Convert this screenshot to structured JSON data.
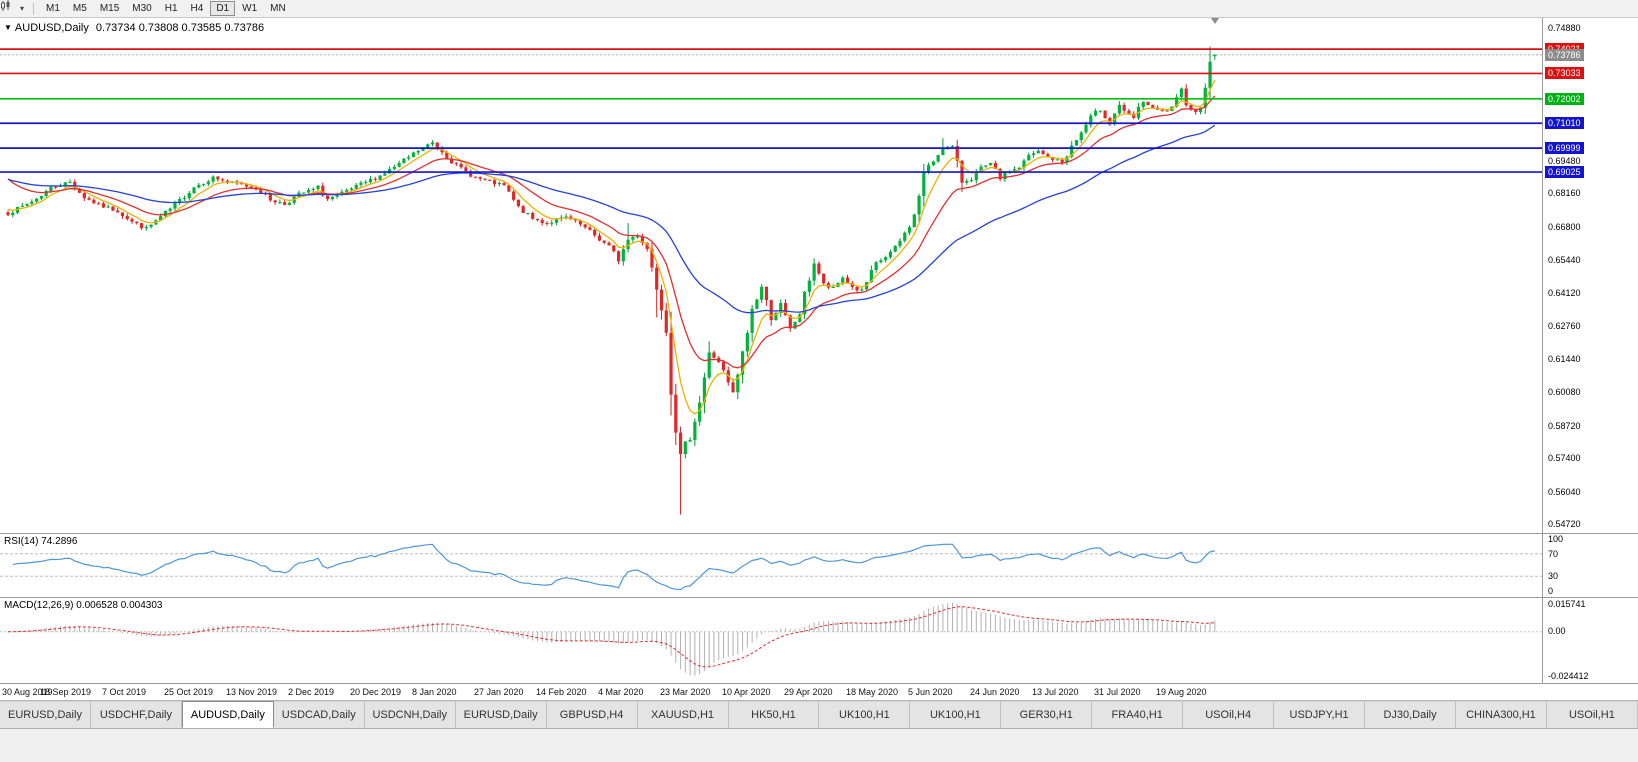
{
  "toolbar": {
    "chart_type_icon": "candlestick-chart-icon",
    "dropdown_icon": "▾",
    "timeframes": [
      "M1",
      "M5",
      "M15",
      "M30",
      "H1",
      "H4",
      "D1",
      "W1",
      "MN"
    ],
    "active_timeframe": "D1"
  },
  "main_chart": {
    "collapse_icon": "▼",
    "title": "AUDUSD,Daily",
    "ohlc": "0.73734 0.73808 0.73585 0.73786"
  },
  "rsi_panel": {
    "label": "RSI(14) 74.2896"
  },
  "macd_panel": {
    "label": "MACD(12,26,9) 0.006528 0.004303"
  },
  "tabs": {
    "active_index": 2,
    "items": [
      "EURUSD,Daily",
      "USDCHF,Daily",
      "AUDUSD,Daily",
      "USDCAD,Daily",
      "USDCNH,Daily",
      "EURUSD,Daily",
      "GBPUSD,H4",
      "XAUUSD,H1",
      "HK50,H1",
      "UK100,H1",
      "UK100,H1",
      "GER30,H1",
      "FRA40,H1",
      "USOil,H4",
      "USDJPY,H1",
      "DJ30,Daily",
      "CHINA300,H1",
      "USOil,H1"
    ]
  },
  "chart_data": {
    "type": "candlestick",
    "symbol": "AUDUSD",
    "timeframe": "Daily",
    "current": {
      "open": 0.73734,
      "high": 0.73808,
      "low": 0.73585,
      "close": 0.73786
    },
    "y_axis": {
      "min": 0.5472,
      "max": 0.7488,
      "labels": [
        "0.74880",
        "0.69480",
        "0.68160",
        "0.66800",
        "0.65440",
        "0.64120",
        "0.62760",
        "0.61440",
        "0.60080",
        "0.58720",
        "0.57400",
        "0.56040",
        "0.54720"
      ]
    },
    "x_labels": [
      "30 Aug 2019",
      "18 Sep 2019",
      "7 Oct 2019",
      "25 Oct 2019",
      "13 Nov 2019",
      "2 Dec 2019",
      "20 Dec 2019",
      "8 Jan 2020",
      "27 Jan 2020",
      "14 Feb 2020",
      "4 Mar 2020",
      "23 Mar 2020",
      "10 Apr 2020",
      "29 Apr 2020",
      "18 May 2020",
      "5 Jun 2020",
      "24 Jun 2020",
      "13 Jul 2020",
      "31 Jul 2020",
      "19 Aug 2020"
    ],
    "label_every": 13,
    "hlines": [
      {
        "price": 0.74021,
        "color": "#dd1111",
        "label": "0.74021"
      },
      {
        "price": 0.73033,
        "color": "#dd1111",
        "label": "0.73033"
      },
      {
        "price": 0.72002,
        "color": "#00c214",
        "label": "0.72002"
      },
      {
        "price": 0.7101,
        "color": "#1414cc",
        "label": "0.71010"
      },
      {
        "price": 0.69999,
        "color": "#1414cc",
        "label": "0.69999"
      },
      {
        "price": 0.69025,
        "color": "#1414cc",
        "label": "0.69025"
      }
    ],
    "badges": [
      {
        "price": 0.74021,
        "bg": "#dd1111",
        "label": "0.74021"
      },
      {
        "price": 0.73786,
        "bg": "#8c8c8c",
        "label": "0.73786"
      },
      {
        "price": 0.73033,
        "bg": "#dd1111",
        "label": "0.73033"
      },
      {
        "price": 0.72002,
        "bg": "#00b214",
        "label": "0.72002"
      },
      {
        "price": 0.7101,
        "bg": "#1414cc",
        "label": "0.71010"
      },
      {
        "price": 0.69999,
        "bg": "#1414cc",
        "label": "0.69999"
      },
      {
        "price": 0.69025,
        "bg": "#1414cc",
        "label": "0.69025"
      }
    ],
    "colors": {
      "up": "#00b33c",
      "down": "#e02828",
      "wick_up": "#009933",
      "wick_down": "#cc2020",
      "bid_line": "#b0b0b0",
      "rsi": "#4f97d7",
      "rsi_level": "#bdbdbd",
      "macd_hist": "#b0b0b0",
      "macd_signal": "#e03030",
      "macd_zero": "#c4c4c4"
    },
    "candles": {
      "count": 254,
      "seed": 7,
      "noise": 0.0013,
      "anchors": [
        [
          0,
          0.6735
        ],
        [
          3,
          0.6762
        ],
        [
          6,
          0.6795
        ],
        [
          9,
          0.684
        ],
        [
          13,
          0.6862
        ],
        [
          16,
          0.68
        ],
        [
          19,
          0.6768
        ],
        [
          23,
          0.6745
        ],
        [
          26,
          0.67
        ],
        [
          29,
          0.6672
        ],
        [
          32,
          0.672
        ],
        [
          35,
          0.6768
        ],
        [
          39,
          0.6842
        ],
        [
          43,
          0.688
        ],
        [
          47,
          0.6858
        ],
        [
          52,
          0.6838
        ],
        [
          55,
          0.679
        ],
        [
          58,
          0.6772
        ],
        [
          61,
          0.6812
        ],
        [
          65,
          0.6838
        ],
        [
          67,
          0.6792
        ],
        [
          70,
          0.6815
        ],
        [
          74,
          0.6852
        ],
        [
          78,
          0.6888
        ],
        [
          82,
          0.6935
        ],
        [
          86,
          0.699
        ],
        [
          89,
          0.7022
        ],
        [
          91,
          0.6988
        ],
        [
          94,
          0.6928
        ],
        [
          98,
          0.688
        ],
        [
          101,
          0.6862
        ],
        [
          104,
          0.6845
        ],
        [
          107,
          0.6758
        ],
        [
          110,
          0.6712
        ],
        [
          113,
          0.6695
        ],
        [
          117,
          0.6718
        ],
        [
          120,
          0.6688
        ],
        [
          123,
          0.6645
        ],
        [
          126,
          0.6598
        ],
        [
          128,
          0.6548
        ],
        [
          130,
          0.6628
        ],
        [
          132,
          0.6648
        ],
        [
          134,
          0.6592
        ],
        [
          136,
          0.6438
        ],
        [
          138,
          0.6282
        ],
        [
          139,
          0.6032
        ],
        [
          140,
          0.5865
        ],
        [
          141,
          0.5745
        ],
        [
          142,
          0.5795
        ],
        [
          143,
          0.583
        ],
        [
          145,
          0.597
        ],
        [
          147,
          0.6165
        ],
        [
          149,
          0.6135
        ],
        [
          152,
          0.5995
        ],
        [
          154,
          0.616
        ],
        [
          156,
          0.6345
        ],
        [
          158,
          0.6435
        ],
        [
          160,
          0.631
        ],
        [
          162,
          0.636
        ],
        [
          164,
          0.626
        ],
        [
          166,
          0.633
        ],
        [
          168,
          0.647
        ],
        [
          169,
          0.6535
        ],
        [
          171,
          0.6445
        ],
        [
          173,
          0.6425
        ],
        [
          175,
          0.6475
        ],
        [
          177,
          0.6435
        ],
        [
          179,
          0.6415
        ],
        [
          182,
          0.653
        ],
        [
          184,
          0.6558
        ],
        [
          186,
          0.6592
        ],
        [
          188,
          0.6652
        ],
        [
          190,
          0.6722
        ],
        [
          192,
          0.6898
        ],
        [
          194,
          0.6948
        ],
        [
          196,
          0.7005
        ],
        [
          198,
          0.7
        ],
        [
          200,
          0.6862
        ],
        [
          202,
          0.6878
        ],
        [
          204,
          0.6918
        ],
        [
          206,
          0.6932
        ],
        [
          208,
          0.6878
        ],
        [
          210,
          0.6905
        ],
        [
          212,
          0.6922
        ],
        [
          214,
          0.6968
        ],
        [
          216,
          0.6985
        ],
        [
          218,
          0.6962
        ],
        [
          221,
          0.6942
        ],
        [
          223,
          0.7005
        ],
        [
          225,
          0.7062
        ],
        [
          227,
          0.7125
        ],
        [
          229,
          0.716
        ],
        [
          231,
          0.7102
        ],
        [
          233,
          0.7178
        ],
        [
          234,
          0.7145
        ],
        [
          236,
          0.7122
        ],
        [
          238,
          0.7192
        ],
        [
          240,
          0.7158
        ],
        [
          242,
          0.7148
        ],
        [
          244,
          0.7158
        ],
        [
          246,
          0.7232
        ],
        [
          247,
          0.7185
        ],
        [
          249,
          0.714
        ],
        [
          250,
          0.718
        ],
        [
          251,
          0.7262
        ],
        [
          252,
          0.734
        ],
        [
          253,
          0.7379
        ]
      ],
      "overrides": [
        {
          "i": 89,
          "high": 0.7032
        },
        {
          "i": 130,
          "high": 0.6695
        },
        {
          "i": 136,
          "low": 0.6312
        },
        {
          "i": 141,
          "low": 0.551
        },
        {
          "i": 196,
          "high": 0.704
        },
        {
          "i": 252,
          "high": 0.7413
        },
        {
          "i": 253,
          "open": 0.73734,
          "high": 0.73808,
          "low": 0.73585,
          "close": 0.73786
        }
      ]
    },
    "moving_averages": [
      {
        "name": "ma-fast",
        "period": 6,
        "color": "#e8b400",
        "init": 0.676
      },
      {
        "name": "ma-medium",
        "period": 16,
        "color": "#e03030",
        "init": 0.6895
      },
      {
        "name": "ma-slow",
        "period": 45,
        "color": "#2742d6",
        "init": 0.688
      }
    ],
    "rsi": {
      "period": 14,
      "levels": [
        100,
        70,
        30,
        0
      ],
      "dashed_levels": [
        70,
        30
      ],
      "value": "74.2896"
    },
    "macd": {
      "fast": 12,
      "slow": 26,
      "signal": 9,
      "range": {
        "max": 0.015741,
        "min": -0.024412
      },
      "axis_labels": [
        "0.015741",
        "0.00",
        "-0.024412"
      ]
    }
  }
}
